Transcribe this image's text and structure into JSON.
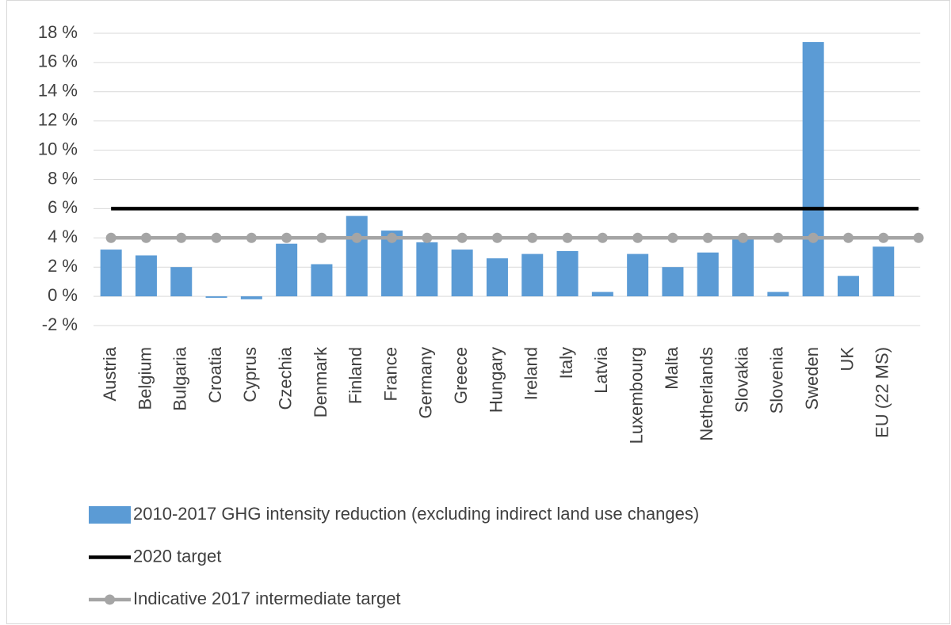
{
  "chart_data": {
    "type": "bar",
    "categories": [
      "Austria",
      "Belgium",
      "Bulgaria",
      "Croatia",
      "Cyprus",
      "Czechia",
      "Denmark",
      "Finland",
      "France",
      "Germany",
      "Greece",
      "Hungary",
      "Ireland",
      "Italy",
      "Latvia",
      "Luxembourg",
      "Malta",
      "Netherlands",
      "Slovakia",
      "Slovenia",
      "Sweden",
      "UK",
      "EU (22 MS)",
      null
    ],
    "series": [
      {
        "name": "2010-2017 GHG intensity reduction (excluding indirect land use changes)",
        "type": "bar",
        "color": "#5b9bd5",
        "values": [
          3.2,
          2.8,
          2.0,
          -0.1,
          -0.2,
          3.6,
          2.2,
          5.5,
          4.5,
          3.7,
          3.2,
          2.6,
          2.9,
          3.1,
          0.3,
          2.9,
          2.0,
          3.0,
          3.9,
          0.3,
          17.4,
          1.4,
          3.4,
          null
        ]
      },
      {
        "name": "2020 target",
        "type": "line",
        "color": "#000000",
        "values": [
          6,
          6,
          6,
          6,
          6,
          6,
          6,
          6,
          6,
          6,
          6,
          6,
          6,
          6,
          6,
          6,
          6,
          6,
          6,
          6,
          6,
          6,
          6,
          6
        ]
      },
      {
        "name": "Indicative 2017 intermediate target",
        "type": "line",
        "color": "#a5a5a5",
        "markers": true,
        "values": [
          4,
          4,
          4,
          4,
          4,
          4,
          4,
          4,
          4,
          4,
          4,
          4,
          4,
          4,
          4,
          4,
          4,
          4,
          4,
          4,
          4,
          4,
          4,
          4
        ]
      }
    ],
    "ylim": [
      -2,
      18
    ],
    "yticks": [
      {
        "value": -2,
        "label": "-2 %"
      },
      {
        "value": 0,
        "label": "0 %"
      },
      {
        "value": 2,
        "label": "2 %"
      },
      {
        "value": 4,
        "label": "4 %"
      },
      {
        "value": 6,
        "label": "6 %"
      },
      {
        "value": 8,
        "label": "8 %"
      },
      {
        "value": 10,
        "label": "10 %"
      },
      {
        "value": 12,
        "label": "12 %"
      },
      {
        "value": 14,
        "label": "14 %"
      },
      {
        "value": 16,
        "label": "16 %"
      },
      {
        "value": 18,
        "label": "18 %"
      }
    ],
    "grid": true,
    "legend": "bottom"
  }
}
